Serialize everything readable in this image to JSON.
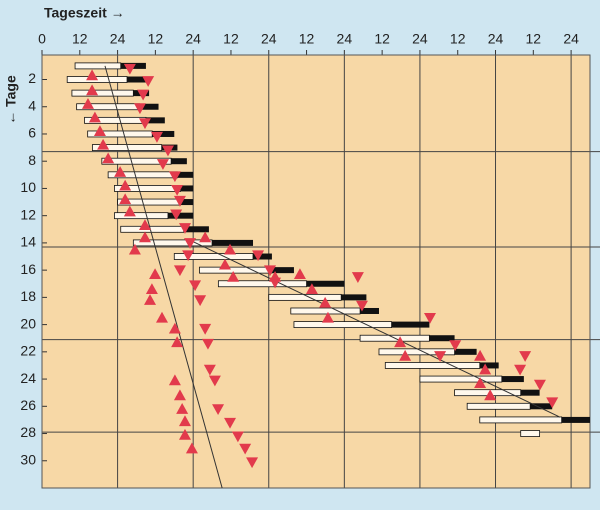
{
  "chart_data": {
    "type": "actogram",
    "x_label": "Tageszeit →",
    "y_label": "← Tage",
    "xlim": [
      0,
      174
    ],
    "ylim": [
      0.2,
      32
    ],
    "xticks": [
      0,
      12,
      24,
      {
        "value": 36,
        "label": "12"
      },
      {
        "value": 48,
        "label": "24"
      },
      {
        "value": 60,
        "label": "12"
      },
      {
        "value": 72,
        "label": "24"
      },
      {
        "value": 84,
        "label": "12"
      },
      {
        "value": 96,
        "label": "24"
      },
      {
        "value": 108,
        "label": "12"
      },
      {
        "value": 120,
        "label": "24"
      },
      {
        "value": 132,
        "label": "12"
      },
      {
        "value": 144,
        "label": "24"
      },
      {
        "value": 156,
        "label": "12"
      },
      {
        "value": 168,
        "label": "24"
      }
    ],
    "yticks": [
      2,
      4,
      6,
      8,
      10,
      12,
      14,
      16,
      18,
      20,
      22,
      24,
      26,
      28,
      30
    ],
    "hlines": [
      7.3,
      14.3,
      21.1,
      27.9
    ],
    "bars": {
      "day": [
        1,
        2,
        3,
        4,
        5,
        6,
        7,
        8,
        9,
        10,
        11,
        12,
        13,
        14,
        15,
        16,
        17,
        18,
        19,
        20,
        21,
        22,
        23,
        24,
        25,
        26,
        27,
        28
      ],
      "start": [
        10.5,
        8,
        9.5,
        11,
        13.5,
        14.5,
        16,
        19,
        21,
        23,
        24,
        23,
        25,
        29,
        42,
        50,
        56,
        72,
        79,
        80,
        101,
        107,
        109,
        120,
        131,
        135,
        139,
        152
      ],
      "split": [
        25,
        27,
        29,
        31,
        33,
        35,
        38,
        41,
        43,
        44,
        44,
        40,
        45,
        54,
        67,
        73,
        84,
        95,
        101,
        111,
        123,
        131,
        139,
        146,
        152,
        155,
        165,
        158
      ],
      "end": [
        33,
        34,
        34,
        37,
        39,
        42,
        43,
        46,
        48,
        48,
        48,
        48,
        53,
        67,
        73,
        80,
        96,
        103,
        107,
        123,
        131,
        138,
        145,
        153,
        158,
        162,
        174,
        null
      ]
    },
    "bar_color": "#111111",
    "marker_color": "#e23a4c",
    "up_markers": {
      "x": [
        15.9,
        15.9,
        14.6,
        16.8,
        18.4,
        19.4,
        21.0,
        24.8,
        26.4,
        26.4,
        27.9,
        32.7,
        32.7,
        29.5,
        35.9,
        34.9,
        34.3,
        38.1,
        42.2,
        42.9,
        42.2,
        43.8,
        44.5,
        45.4,
        45.4,
        47.6,
        51.8,
        59.7,
        58.1,
        60.7,
        74.0,
        81.9,
        85.7,
        89.9,
        90.8,
        113.7,
        115.3,
        139.1,
        140.7,
        139.1,
        142.3
      ],
      "y": [
        1.7,
        2.8,
        3.8,
        4.8,
        5.8,
        6.8,
        7.8,
        8.8,
        9.8,
        10.8,
        11.7,
        12.7,
        13.6,
        14.5,
        16.3,
        17.4,
        18.2,
        19.5,
        20.3,
        21.3,
        24.1,
        25.2,
        26.2,
        27.1,
        28.1,
        29.1,
        13.6,
        14.5,
        15.6,
        16.5,
        16.5,
        16.3,
        17.4,
        18.4,
        19.5,
        21.3,
        22.3,
        22.3,
        23.3,
        24.3,
        25.2
      ]
    },
    "down_markers": {
      "x": [
        27.9,
        33.7,
        32.1,
        31.1,
        32.7,
        36.5,
        40.0,
        38.4,
        42.2,
        42.9,
        43.8,
        42.6,
        45.4,
        47.0,
        46.4,
        43.8,
        48.6,
        50.2,
        51.8,
        52.7,
        53.3,
        54.9,
        55.9,
        59.7,
        62.2,
        64.5,
        66.7,
        68.6,
        72.4,
        74.0,
        100.3,
        101.6,
        123.2,
        131.2,
        126.4,
        153.4,
        151.8,
        158.1,
        162.0
      ],
      "y": [
        1.2,
        2.1,
        3.1,
        4.1,
        5.2,
        6.2,
        7.2,
        8.2,
        9.1,
        10.1,
        10.9,
        11.9,
        12.9,
        14.0,
        14.9,
        16.0,
        17.1,
        18.2,
        20.3,
        21.4,
        23.3,
        24.1,
        26.2,
        27.2,
        28.2,
        29.1,
        30.1,
        14.9,
        16.0,
        16.9,
        16.5,
        18.6,
        19.5,
        21.5,
        22.3,
        22.3,
        23.3,
        24.4,
        25.7
      ]
    },
    "trend_lines": [
      {
        "x": [
          20.0,
          57.2
        ],
        "y": [
          1,
          32
        ]
      },
      {
        "x": [
          47.0,
          164.5
        ],
        "y": [
          13.8,
          26.8
        ]
      }
    ]
  }
}
